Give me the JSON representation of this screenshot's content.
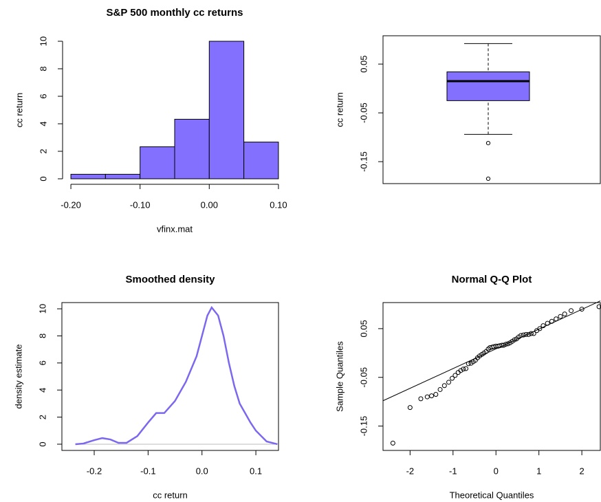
{
  "chart_data": [
    {
      "type": "histogram",
      "title": "S&P 500 monthly cc returns",
      "xlabel": "vfinx.mat",
      "ylabel": "cc return",
      "bins": [
        -0.2,
        -0.15,
        -0.1,
        -0.05,
        0,
        0.05,
        0.1
      ],
      "values": [
        0.33,
        0.33,
        2.33,
        4.33,
        10,
        2.67
      ],
      "color": "#8470ff",
      "xlim": [
        -0.212,
        0.112
      ],
      "ylim": [
        -0.4,
        10.4
      ],
      "xticks": [
        {
          "value": -0.2,
          "label": "-0.20"
        },
        {
          "value": -0.1,
          "label": "-0.10"
        },
        {
          "value": 0,
          "label": "0.00"
        },
        {
          "value": 0.1,
          "label": "0.10"
        }
      ],
      "yticks": [
        0,
        2,
        4,
        6,
        8,
        10
      ]
    },
    {
      "type": "box",
      "ylabel": "cc return",
      "color": "#8470ff",
      "stats": {
        "whisker_low": -0.094,
        "q1": -0.025,
        "median": 0.015,
        "q3": 0.034,
        "whisker_high": 0.092
      },
      "outliers": [
        -0.112,
        -0.185
      ],
      "ylim": [
        -0.195,
        0.108
      ],
      "yticks": [
        0.05,
        -0.05,
        -0.15
      ]
    },
    {
      "type": "line",
      "title": "Smoothed density",
      "xlabel": "cc return",
      "ylabel": "density estimate",
      "color": "#7b68ee",
      "x": [
        -0.235,
        -0.22,
        -0.2,
        -0.185,
        -0.17,
        -0.155,
        -0.14,
        -0.12,
        -0.1,
        -0.085,
        -0.07,
        -0.05,
        -0.03,
        -0.01,
        0,
        0.01,
        0.018,
        0.03,
        0.04,
        0.05,
        0.06,
        0.07,
        0.08,
        0.09,
        0.1,
        0.12,
        0.14
      ],
      "values": [
        0,
        0.05,
        0.3,
        0.45,
        0.35,
        0.1,
        0.1,
        0.6,
        1.6,
        2.3,
        2.3,
        3.2,
        4.6,
        6.5,
        8,
        9.5,
        10.1,
        9.5,
        8,
        6,
        4.3,
        3,
        2.3,
        1.6,
        1,
        0.2,
        0
      ],
      "xlim": [
        -0.26,
        0.142
      ],
      "ylim": [
        -0.46,
        10.46
      ],
      "xticks": [
        -0.2,
        -0.1,
        {
          "value": 0,
          "label": "0.0"
        },
        0.1
      ],
      "yticks": [
        0,
        2,
        4,
        6,
        8,
        10
      ]
    },
    {
      "type": "scatter",
      "title": "Normal Q-Q Plot",
      "xlabel": "Theoretical Quantiles",
      "ylabel": "Sample Quantiles",
      "x": [
        -2.4,
        -2,
        -1.75,
        -1.6,
        -1.5,
        -1.4,
        -1.3,
        -1.2,
        -1.1,
        -1.02,
        -0.95,
        -0.88,
        -0.82,
        -0.76,
        -0.7,
        -0.64,
        -0.58,
        -0.53,
        -0.48,
        -0.43,
        -0.38,
        -0.33,
        -0.28,
        -0.23,
        -0.18,
        -0.14,
        -0.09,
        -0.05,
        0,
        0.05,
        0.09,
        0.14,
        0.18,
        0.23,
        0.28,
        0.33,
        0.38,
        0.43,
        0.48,
        0.53,
        0.58,
        0.64,
        0.7,
        0.76,
        0.82,
        0.88,
        0.95,
        1.02,
        1.1,
        1.2,
        1.3,
        1.4,
        1.5,
        1.6,
        1.75,
        2,
        2.4
      ],
      "values": [
        -0.185,
        -0.112,
        -0.094,
        -0.09,
        -0.088,
        -0.085,
        -0.075,
        -0.067,
        -0.06,
        -0.052,
        -0.046,
        -0.04,
        -0.036,
        -0.033,
        -0.032,
        -0.022,
        -0.021,
        -0.018,
        -0.015,
        -0.01,
        -0.006,
        -0.003,
        0,
        0.003,
        0.008,
        0.011,
        0.012,
        0.013,
        0.014,
        0.014,
        0.015,
        0.016,
        0.016,
        0.018,
        0.019,
        0.021,
        0.024,
        0.027,
        0.029,
        0.033,
        0.036,
        0.037,
        0.038,
        0.038,
        0.04,
        0.04,
        0.046,
        0.05,
        0.056,
        0.061,
        0.065,
        0.07,
        0.075,
        0.08,
        0.087,
        0.09,
        0.095
      ],
      "line": {
        "intercept": 0.0085,
        "slope": 0.0405
      },
      "xlim": [
        -2.63,
        2.43
      ],
      "ylim": [
        -0.2,
        0.1035
      ],
      "xticks": [
        -2,
        -1,
        0,
        1,
        2
      ],
      "yticks": [
        0.05,
        -0.05,
        -0.15
      ]
    }
  ]
}
